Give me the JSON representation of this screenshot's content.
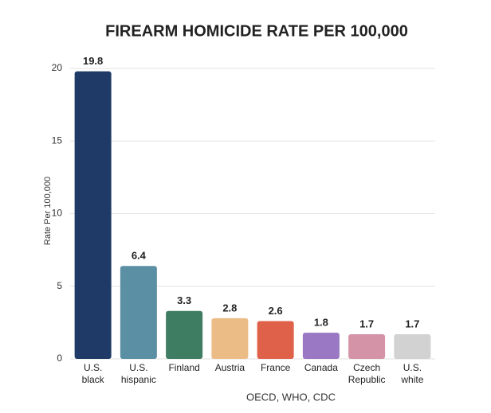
{
  "chart_data": {
    "type": "bar",
    "title": "FIREARM HOMICIDE RATE PER 100,000",
    "y_label": "Rate Per 100,000",
    "source": "OECD, WHO, CDC",
    "categories": [
      "U.S.\nblack",
      "U.S.\nhispanic",
      "Finland",
      "Austria",
      "France",
      "Canada",
      "Czech\nRepublic",
      "U.S.\nwhite"
    ],
    "values": [
      19.8,
      6.4,
      3.3,
      2.8,
      2.6,
      1.8,
      1.7,
      1.7
    ],
    "colors": [
      "#1f3a66",
      "#5b8fa3",
      "#3f7d62",
      "#ecbc86",
      "#e0614a",
      "#9a78c4",
      "#d493a6",
      "#d2d2d2"
    ],
    "ylim": [
      0,
      20
    ],
    "yticks": [
      0,
      5,
      10,
      15,
      20
    ],
    "grid": true
  }
}
